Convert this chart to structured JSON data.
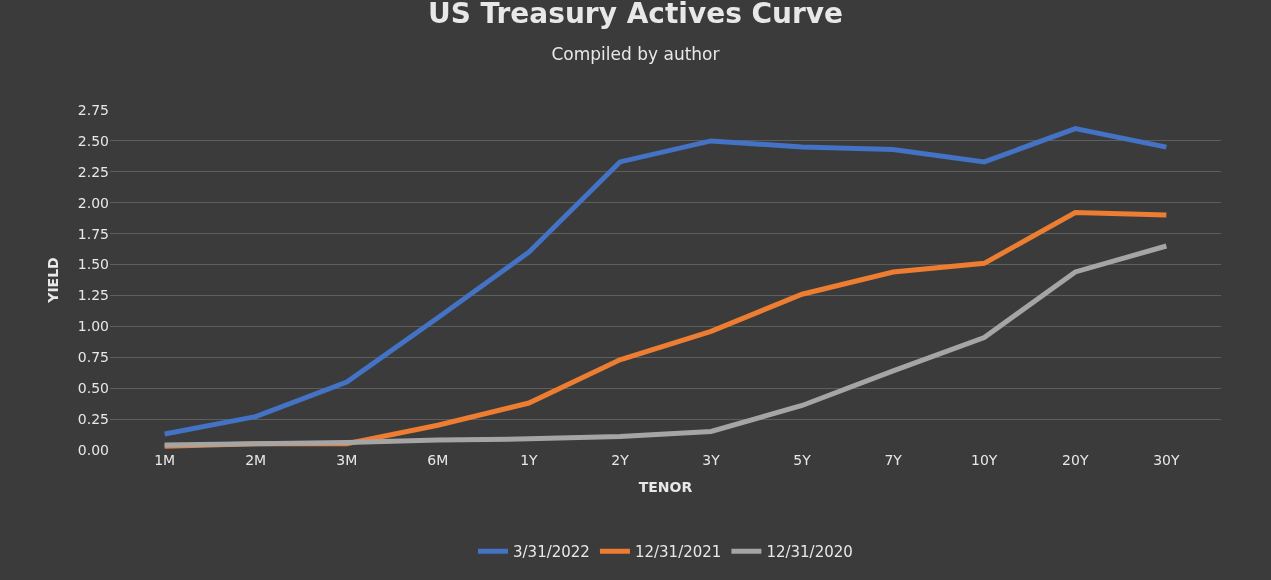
{
  "chart_data": {
    "type": "line",
    "title": "US Treasury Actives Curve",
    "subtitle": "Compiled by author",
    "xlabel": "TENOR",
    "ylabel": "YIELD",
    "categories": [
      "1M",
      "2M",
      "3M",
      "6M",
      "1Y",
      "2Y",
      "3Y",
      "5Y",
      "7Y",
      "10Y",
      "20Y",
      "30Y"
    ],
    "series": [
      {
        "name": "3/31/2022",
        "color": "#4472c4",
        "values": [
          0.13,
          0.27,
          0.55,
          1.07,
          1.6,
          2.33,
          2.5,
          2.45,
          2.43,
          2.33,
          2.6,
          2.45
        ]
      },
      {
        "name": "12/31/2021",
        "color": "#ed7d31",
        "values": [
          0.03,
          0.05,
          0.05,
          0.2,
          0.38,
          0.73,
          0.96,
          1.26,
          1.44,
          1.51,
          1.92,
          1.9
        ]
      },
      {
        "name": "12/31/2020",
        "color": "#a5a5a5",
        "values": [
          0.04,
          0.05,
          0.06,
          0.08,
          0.09,
          0.11,
          0.15,
          0.36,
          0.64,
          0.91,
          1.44,
          1.65
        ]
      }
    ],
    "ylim": [
      0,
      2.75
    ],
    "yticks": [
      {
        "value": 0,
        "label": "0.00"
      },
      0.25,
      {
        "value": 0.5,
        "label": "0.50"
      },
      0.75,
      {
        "value": 1,
        "label": "1.00"
      },
      1.25,
      {
        "value": 1.5,
        "label": "1.50"
      },
      1.75,
      {
        "value": 2,
        "label": "2.00"
      },
      2.25,
      {
        "value": 2.5,
        "label": "2.50"
      },
      2.75
    ],
    "grid": "y",
    "legend": "bottom",
    "marker": "none",
    "line_style": "solid"
  }
}
